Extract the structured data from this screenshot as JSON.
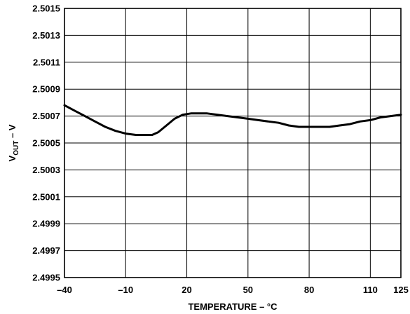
{
  "chart_data": {
    "type": "line",
    "xlabel": "TEMPERATURE – °C",
    "ylabel_main": "V",
    "ylabel_sub": "OUT",
    "ylabel_suffix": " – V",
    "xlim": [
      -40,
      125
    ],
    "ylim": [
      2.4995,
      2.5015
    ],
    "x_ticks": [
      -40,
      -10,
      20,
      50,
      80,
      110,
      125
    ],
    "x_tick_labels": [
      "–40",
      "–10",
      "20",
      "50",
      "80",
      "110",
      "125"
    ],
    "x_gridlines": [
      -10,
      20,
      50,
      80,
      110
    ],
    "y_ticks": [
      2.4995,
      2.4997,
      2.4999,
      2.5001,
      2.5003,
      2.5005,
      2.5007,
      2.5009,
      2.5011,
      2.5013,
      2.5015
    ],
    "y_tick_labels": [
      "2.4995",
      "2.4997",
      "2.4999",
      "2.5001",
      "2.5003",
      "2.5005",
      "2.5007",
      "2.5009",
      "2.5011",
      "2.5013",
      "2.5015"
    ],
    "grid": true,
    "series": [
      {
        "x": [
          -40,
          -35,
          -30,
          -25,
          -20,
          -15,
          -10,
          -5,
          0,
          3,
          6,
          10,
          14,
          18,
          22,
          26,
          30,
          35,
          40,
          45,
          50,
          55,
          60,
          65,
          70,
          75,
          80,
          85,
          90,
          95,
          100,
          105,
          110,
          115,
          120,
          125
        ],
        "y": [
          2.50078,
          2.50074,
          2.5007,
          2.50066,
          2.50062,
          2.50059,
          2.50057,
          2.50056,
          2.50056,
          2.50056,
          2.50058,
          2.50063,
          2.50068,
          2.50071,
          2.50072,
          2.50072,
          2.50072,
          2.50071,
          2.5007,
          2.50069,
          2.50068,
          2.50067,
          2.50066,
          2.50065,
          2.50063,
          2.50062,
          2.50062,
          2.50062,
          2.50062,
          2.50063,
          2.50064,
          2.50066,
          2.50067,
          2.50069,
          2.5007,
          2.50071
        ]
      }
    ]
  }
}
